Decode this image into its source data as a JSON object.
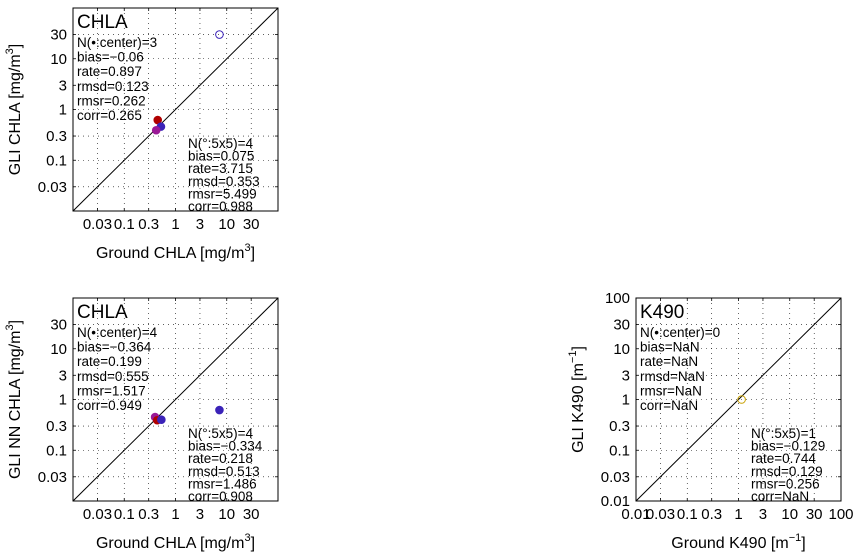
{
  "chart_data": [
    {
      "type": "scatter",
      "panel_title": "CHLA",
      "xlabel": "Ground CHLA [mg/m",
      "xlabel_sup": "3",
      "xlabel_tail": "]",
      "ylabel": "GLI CHLA [mg/m",
      "ylabel_sup": "3",
      "ylabel_tail": "]",
      "scale": "log",
      "xlim": [
        0.01,
        100
      ],
      "ylim": [
        0.01,
        100
      ],
      "xticks": [
        0.03,
        0.1,
        0.3,
        1,
        3,
        10,
        30
      ],
      "xtick_labels": [
        "0.03",
        "0.1",
        "0.3",
        "1",
        "3",
        "10",
        "30"
      ],
      "yticks": [
        0.03,
        0.1,
        0.3,
        1,
        3,
        10,
        30
      ],
      "ytick_labels": [
        "0.03",
        "0.1",
        "0.3",
        "1",
        "3",
        "10",
        "30"
      ],
      "grid": true,
      "one_to_one_line": true,
      "stats_center": [
        "N(•:center)=3",
        "bias=−0.06",
        "rate=0.897",
        "rmsd=0.123",
        "rmsr=0.262",
        "corr=0.265"
      ],
      "stats_5x5": [
        "N(°:5x5)=4",
        "bias=0.075",
        "rate=3.715",
        "rmsd=0.353",
        "rmsr=5.499",
        "corr=0.988"
      ],
      "points": [
        {
          "x": 0.45,
          "y": 0.62,
          "color": "#b00000",
          "filled": true
        },
        {
          "x": 0.52,
          "y": 0.46,
          "color": "#3b23b8",
          "filled": true
        },
        {
          "x": 0.42,
          "y": 0.39,
          "color": "#9a1896",
          "filled": true
        },
        {
          "x": 7.2,
          "y": 30,
          "color": "#3b23b8",
          "filled": false
        }
      ]
    },
    {
      "type": "scatter",
      "panel_title": "CHLA",
      "xlabel": "Ground CHLA [mg/m",
      "xlabel_sup": "3",
      "xlabel_tail": "]",
      "ylabel": "GLI NN CHLA [mg/m",
      "ylabel_sup": "3",
      "ylabel_tail": "]",
      "scale": "log",
      "xlim": [
        0.01,
        100
      ],
      "ylim": [
        0.01,
        100
      ],
      "xticks": [
        0.03,
        0.1,
        0.3,
        1,
        3,
        10,
        30
      ],
      "xtick_labels": [
        "0.03",
        "0.1",
        "0.3",
        "1",
        "3",
        "10",
        "30"
      ],
      "yticks": [
        0.03,
        0.1,
        0.3,
        1,
        3,
        10,
        30
      ],
      "ytick_labels": [
        "0.03",
        "0.1",
        "0.3",
        "1",
        "3",
        "10",
        "30"
      ],
      "grid": true,
      "one_to_one_line": true,
      "stats_center": [
        "N(•:center)=4",
        "bias=−0.364",
        "rate=0.199",
        "rmsd=0.555",
        "rmsr=1.517",
        "corr=0.949"
      ],
      "stats_5x5": [
        "N(°:5x5)=4",
        "bias=−0.334",
        "rate=0.218",
        "rmsd=0.513",
        "rmsr=1.486",
        "corr=0.908"
      ],
      "points": [
        {
          "x": 0.4,
          "y": 0.45,
          "color": "#9a1896",
          "filled": true
        },
        {
          "x": 0.44,
          "y": 0.39,
          "color": "#b00000",
          "filled": true
        },
        {
          "x": 0.53,
          "y": 0.4,
          "color": "#3b23b8",
          "filled": true
        },
        {
          "x": 7.2,
          "y": 0.62,
          "color": "#3b23b8",
          "filled": true
        }
      ]
    },
    {
      "type": "scatter",
      "panel_title": "K490",
      "xlabel": "Ground K490 [m",
      "xlabel_sup": "−1",
      "xlabel_tail": "]",
      "ylabel": "GLI K490 [m",
      "ylabel_sup": "−1",
      "ylabel_tail": "]",
      "scale": "log",
      "xlim": [
        0.01,
        100
      ],
      "ylim": [
        0.01,
        100
      ],
      "xticks": [
        0.01,
        0.03,
        0.1,
        0.3,
        1,
        3,
        10,
        30,
        100
      ],
      "xtick_labels": [
        "0.01",
        "0.03",
        "0.1",
        "0.3",
        "1",
        "3",
        "10",
        "30",
        "100"
      ],
      "yticks": [
        0.01,
        0.03,
        0.1,
        0.3,
        1,
        3,
        10,
        30,
        100
      ],
      "ytick_labels": [
        "0.01",
        "0.03",
        "0.1",
        "0.3",
        "1",
        "3",
        "10",
        "30",
        "100"
      ],
      "grid": true,
      "one_to_one_line": true,
      "stats_center": [
        "N(•:center)=0",
        "bias=NaN",
        "rate=NaN",
        "rmsd=NaN",
        "rmsr=NaN",
        "corr=NaN"
      ],
      "stats_5x5": [
        "N(°:5x5)=1",
        "bias=−0.129",
        "rate=0.744",
        "rmsd=0.129",
        "rmsr=0.256",
        "corr=NaN"
      ],
      "points": [
        {
          "x": 1.15,
          "y": 1.0,
          "color": "#c8a000",
          "filled": false
        }
      ]
    }
  ]
}
